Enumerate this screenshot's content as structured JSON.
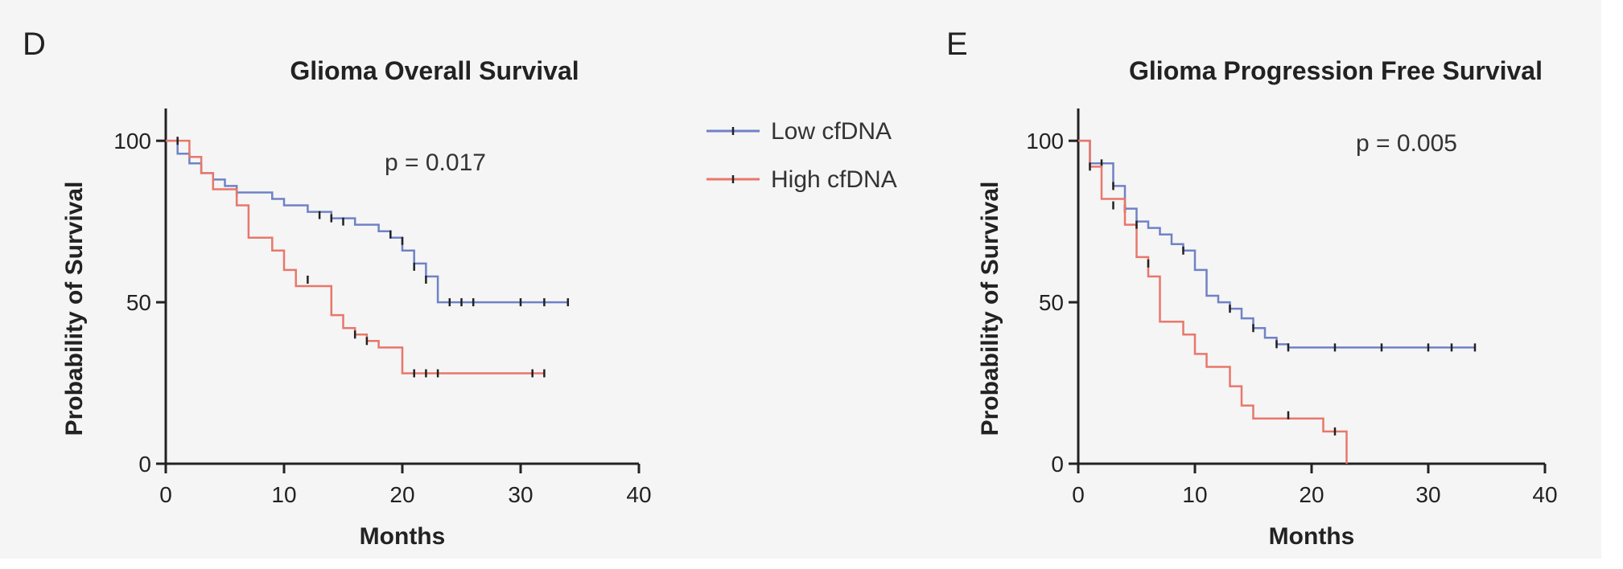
{
  "figure": {
    "legend": [
      {
        "label": "Low cfDNA",
        "color": "#6f82c6"
      },
      {
        "label": "High cfDNA",
        "color": "#e8776b"
      }
    ]
  },
  "chart_data": [
    {
      "panel": "D",
      "type": "line",
      "title": "Glioma Overall Survival",
      "xlabel": "Months",
      "ylabel": "Probability of Survival",
      "xlim": [
        0,
        40
      ],
      "ylim": [
        0,
        110
      ],
      "xticks": [
        0,
        10,
        20,
        30,
        40
      ],
      "yticks": [
        0,
        50,
        100
      ],
      "annotation": "p = 0.017",
      "step": true,
      "grid": false,
      "series": [
        {
          "name": "Low cfDNA",
          "color": "#6f82c6",
          "x": [
            0,
            1,
            2,
            3,
            4,
            5,
            6,
            8,
            9,
            10,
            12,
            14,
            16,
            18,
            19,
            20,
            21,
            22,
            23,
            34
          ],
          "y": [
            100,
            96,
            93,
            90,
            88,
            86,
            84,
            84,
            82,
            80,
            78,
            76,
            74,
            72,
            70,
            66,
            62,
            58,
            50,
            50
          ],
          "censored_x": [
            6,
            13,
            14,
            15,
            19,
            20,
            21,
            22,
            24,
            25,
            26,
            30,
            32,
            34
          ],
          "censored_y": [
            84,
            77,
            76,
            75,
            71,
            69,
            61,
            57,
            50,
            50,
            50,
            50,
            50,
            50
          ]
        },
        {
          "name": "High cfDNA",
          "color": "#e8776b",
          "x": [
            0,
            2,
            3,
            4,
            6,
            7,
            9,
            10,
            11,
            14,
            15,
            16,
            17,
            18,
            20,
            32
          ],
          "y": [
            100,
            95,
            90,
            85,
            80,
            70,
            66,
            60,
            55,
            46,
            42,
            40,
            38,
            36,
            28,
            28
          ],
          "censored_x": [
            1,
            12,
            16,
            17,
            21,
            22,
            23,
            31,
            32
          ],
          "censored_y": [
            100,
            57,
            40,
            38,
            28,
            28,
            28,
            28,
            28
          ]
        }
      ]
    },
    {
      "panel": "E",
      "type": "line",
      "title": "Glioma Progression Free Survival",
      "xlabel": "Months",
      "ylabel": "Probability of Survival",
      "xlim": [
        0,
        40
      ],
      "ylim": [
        0,
        110
      ],
      "xticks": [
        0,
        10,
        20,
        30,
        40
      ],
      "yticks": [
        0,
        50,
        100
      ],
      "annotation": "p = 0.005",
      "step": true,
      "grid": false,
      "series": [
        {
          "name": "Low cfDNA",
          "color": "#6f82c6",
          "x": [
            0,
            1,
            3,
            4,
            5,
            6,
            7,
            8,
            9,
            10,
            11,
            12,
            13,
            14,
            15,
            16,
            17,
            18,
            34
          ],
          "y": [
            100,
            93,
            86,
            79,
            75,
            73,
            71,
            68,
            66,
            60,
            52,
            50,
            48,
            45,
            42,
            39,
            37,
            36,
            36
          ],
          "censored_x": [
            2,
            3,
            4,
            9,
            13,
            15,
            17,
            18,
            22,
            26,
            30,
            32,
            34
          ],
          "censored_y": [
            93,
            86,
            79,
            66,
            48,
            42,
            37,
            36,
            36,
            36,
            36,
            36,
            36
          ]
        },
        {
          "name": "High cfDNA",
          "color": "#e8776b",
          "x": [
            0,
            1,
            2,
            4,
            5,
            6,
            7,
            9,
            10,
            11,
            13,
            14,
            15,
            21,
            22,
            23
          ],
          "y": [
            100,
            92,
            82,
            74,
            64,
            58,
            44,
            40,
            34,
            30,
            24,
            18,
            14,
            10,
            10,
            0
          ],
          "censored_x": [
            1,
            3,
            5,
            6,
            18,
            22
          ],
          "censored_y": [
            92,
            80,
            74,
            62,
            15,
            10
          ]
        }
      ]
    }
  ]
}
